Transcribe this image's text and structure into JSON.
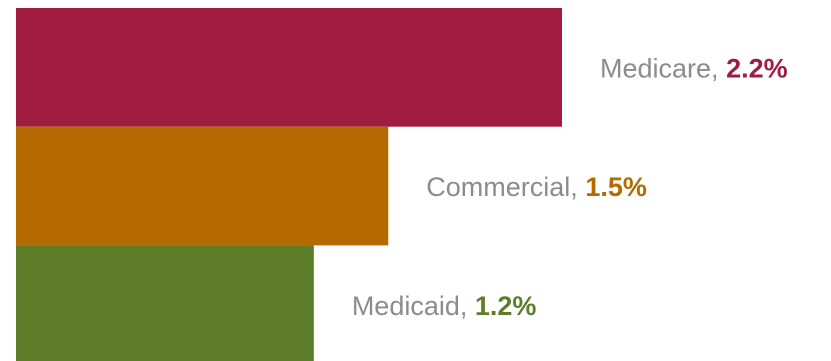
{
  "chart_data": {
    "type": "bar",
    "orientation": "horizontal",
    "categories": [
      "Medicare",
      "Commercial",
      "Medicaid"
    ],
    "values": [
      2.2,
      1.5,
      1.2
    ],
    "value_labels": [
      "2.2%",
      "1.5%",
      "1.2%"
    ],
    "label_separator": ", ",
    "colors": [
      "#a01c40",
      "#b56a00",
      "#5e7d28"
    ],
    "label_text_color": "#8c8c8c",
    "title": "",
    "xlabel": "",
    "ylabel": "",
    "xlim": [
      0,
      3.0
    ],
    "grid": false,
    "legend": "none"
  }
}
